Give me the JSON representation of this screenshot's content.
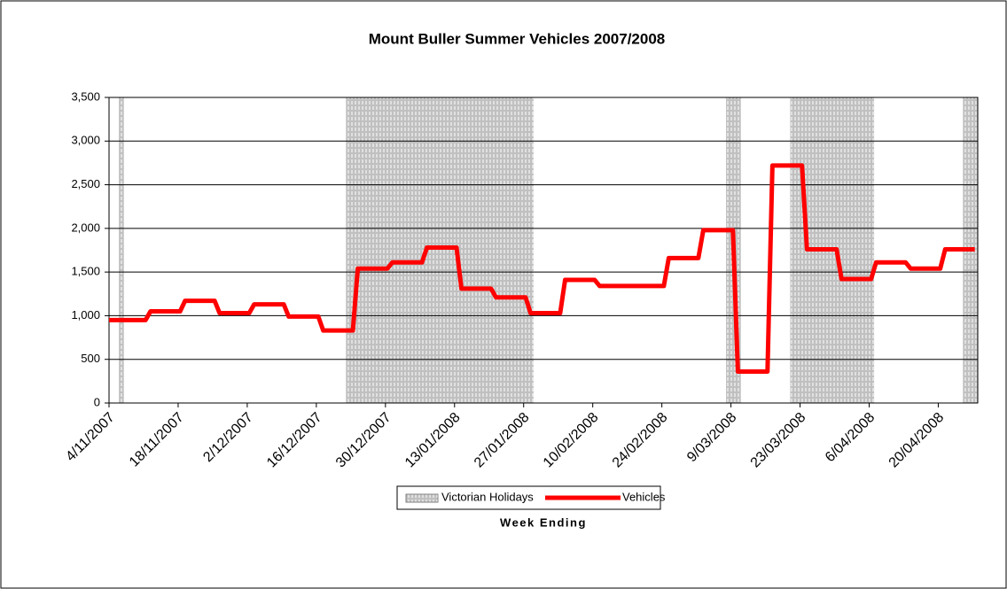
{
  "chart_data": {
    "type": "line",
    "title": "Mount Buller Summer Vehicles 2007/2008",
    "x_label": "Week Ending",
    "x": [
      "4/11/2007",
      "11/11/2007",
      "18/11/2007",
      "25/11/2007",
      "2/12/2007",
      "9/12/2007",
      "16/12/2007",
      "23/12/2007",
      "30/12/2007",
      "6/01/2008",
      "13/01/2008",
      "20/01/2008",
      "27/01/2008",
      "3/02/2008",
      "10/02/2008",
      "17/02/2008",
      "24/02/2008",
      "2/03/2008",
      "9/03/2008",
      "16/03/2008",
      "23/03/2008",
      "30/03/2008",
      "6/04/2008",
      "13/04/2008",
      "20/04/2008"
    ],
    "series": [
      {
        "name": "Vehicles",
        "color": "#ff0000",
        "values": [
          950,
          1050,
          1170,
          1030,
          1130,
          990,
          830,
          1540,
          1610,
          1780,
          1310,
          1210,
          1030,
          1410,
          1340,
          1340,
          1660,
          1980,
          360,
          2720,
          1760,
          1420,
          1610,
          1540,
          1760
        ]
      }
    ],
    "holidays": {
      "name": "Victorian Holidays",
      "color": "#c0c0c0",
      "periods": [
        [
          "6/11/2007",
          "6/11/2007"
        ],
        [
          "22/12/2007",
          "28/01/2008"
        ],
        [
          "8/03/2008",
          "10/03/2008"
        ],
        [
          "21/03/2008",
          "6/04/2008"
        ],
        [
          "25/04/2008",
          "28/04/2008"
        ]
      ]
    },
    "xlim": [
      "4/11/2007",
      "28/04/2008"
    ],
    "xticks": [
      "4/11/2007",
      "18/11/2007",
      "2/12/2007",
      "16/12/2007",
      "30/12/2007",
      "13/01/2008",
      "27/01/2008",
      "10/02/2008",
      "24/02/2008",
      "9/03/2008",
      "23/03/2008",
      "6/04/2008",
      "20/04/2008"
    ],
    "ylim": [
      0,
      3500
    ],
    "yticks": [
      0,
      500,
      {
        "value": 1000,
        "label": "1,000"
      },
      {
        "value": 1500,
        "label": "1,500"
      },
      {
        "value": 2000,
        "label": "2,000"
      },
      {
        "value": 2500,
        "label": "2,500"
      },
      {
        "value": 3000,
        "label": "3,000"
      },
      {
        "value": 3500,
        "label": "3,500"
      }
    ],
    "grid": true,
    "legend": "bottom"
  }
}
